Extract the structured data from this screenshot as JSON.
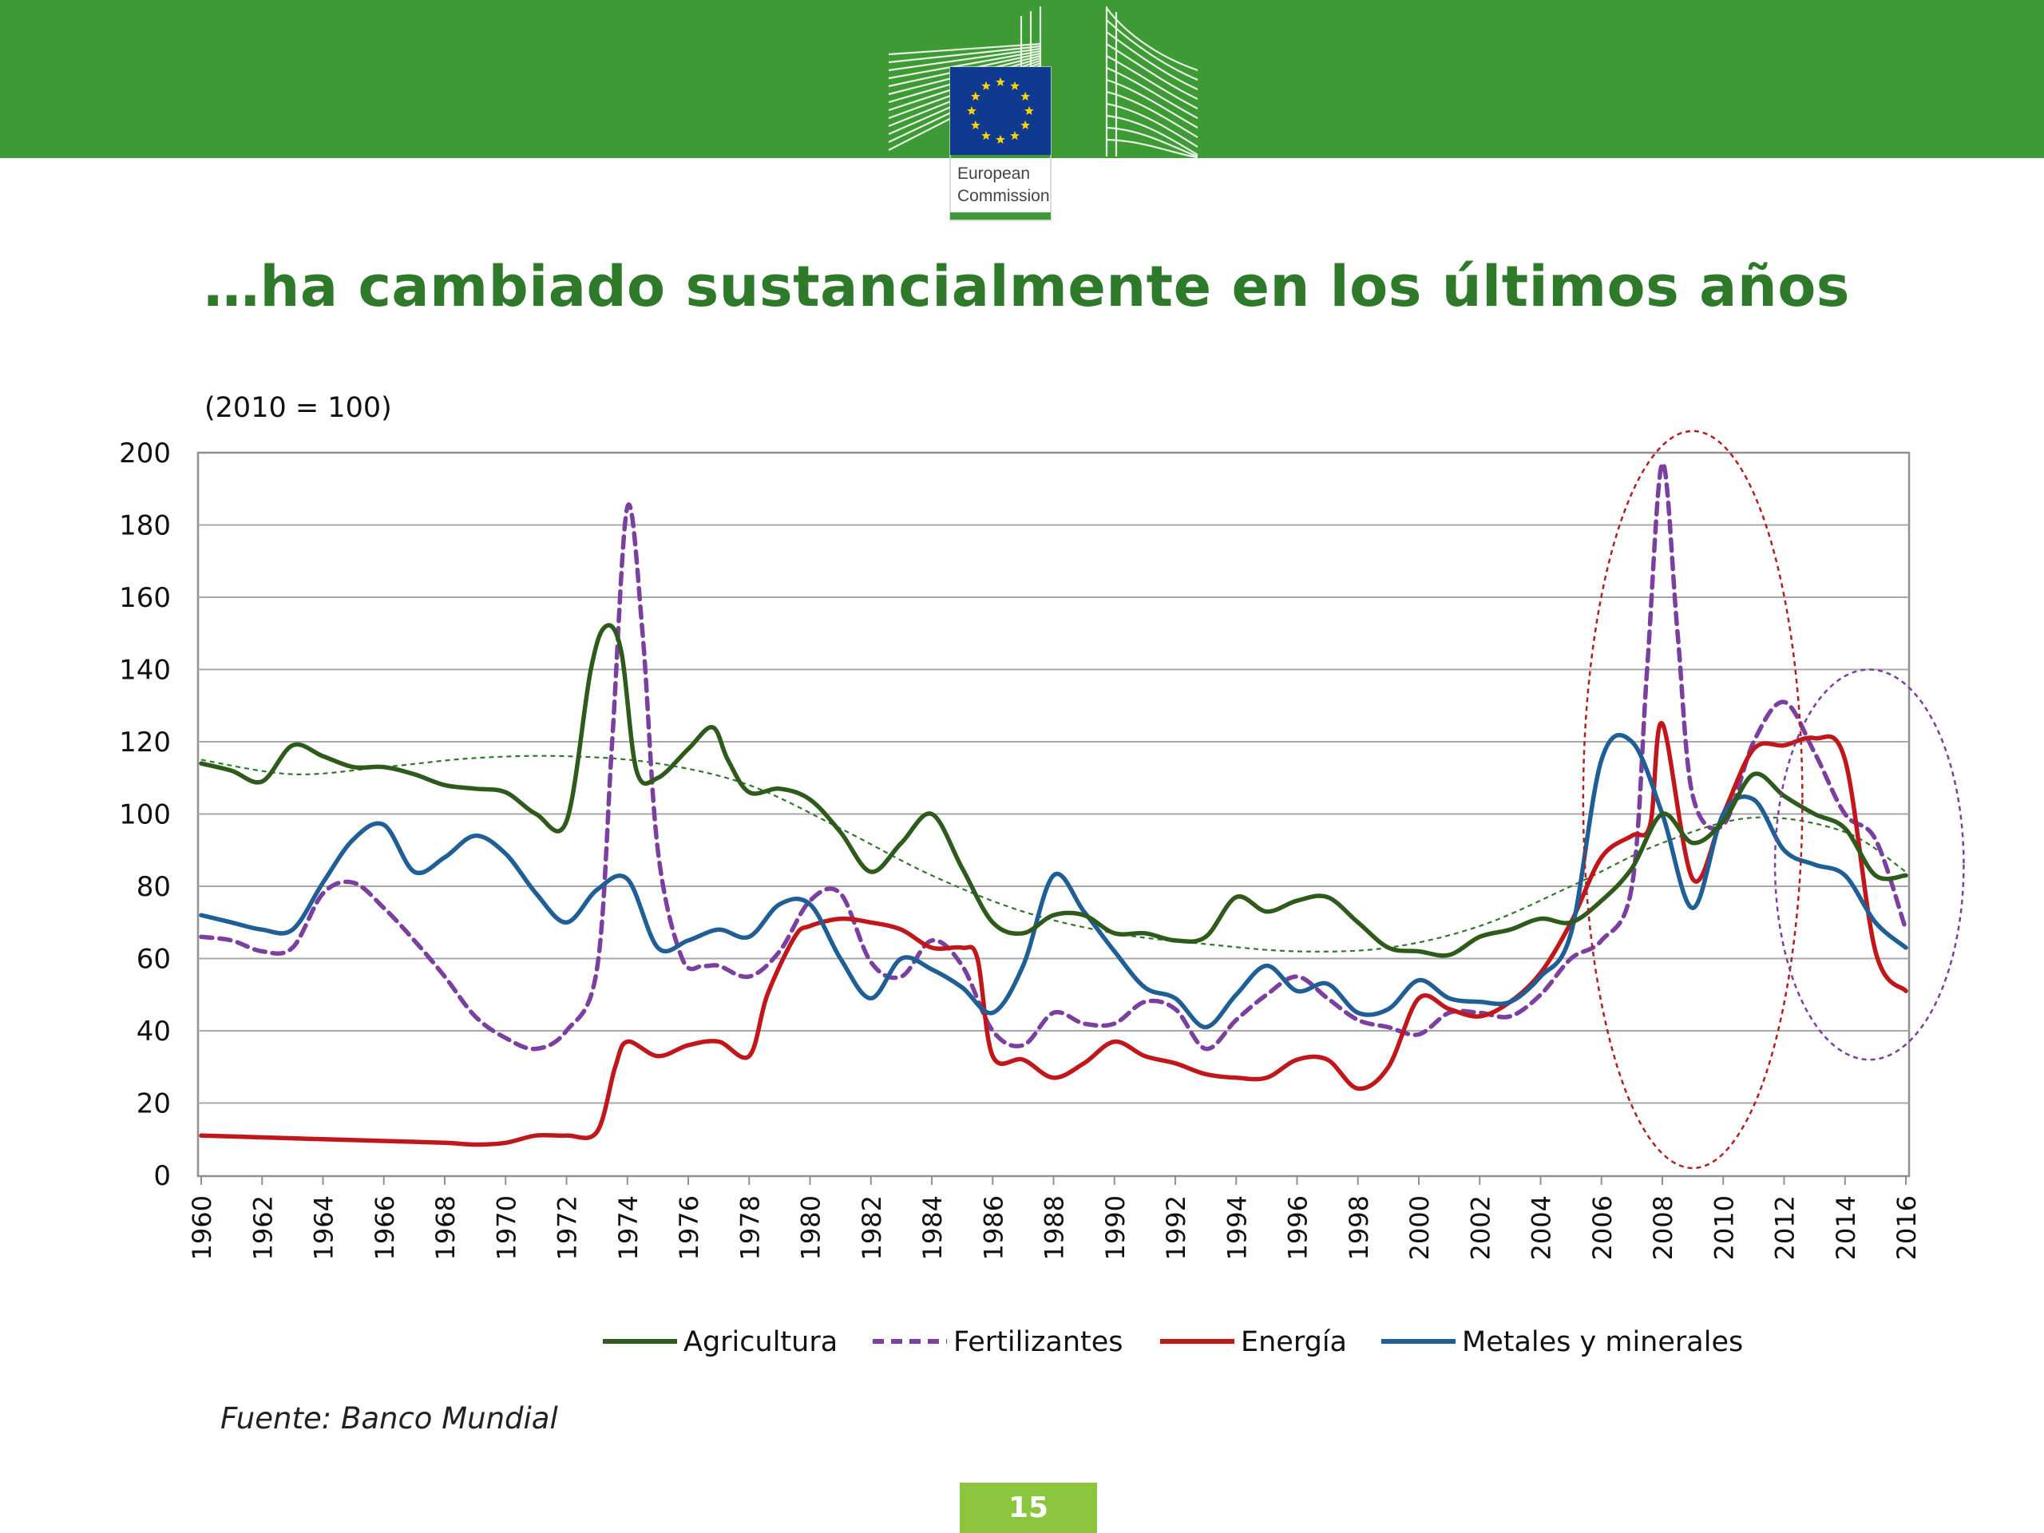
{
  "header": {
    "logo_line1": "European",
    "logo_line2": "Commission",
    "banner_color": "#3d9a35"
  },
  "slide": {
    "title": "…ha cambiado sustancialmente en los últimos años",
    "source": "Fuente: Banco Mundial",
    "page_number": "15"
  },
  "chart_data": {
    "type": "line",
    "title": "",
    "ylabel": "(2010 = 100)",
    "xlabel": "",
    "ylim": [
      0,
      200
    ],
    "xlim": [
      1960,
      2016
    ],
    "yticks": [
      "0",
      "20",
      "40",
      "60",
      "80",
      "100",
      "120",
      "140",
      "160",
      "180",
      "200"
    ],
    "xticks": [
      "1960",
      "1962",
      "1964",
      "1966",
      "1968",
      "1970",
      "1972",
      "1974",
      "1976",
      "1978",
      "1980",
      "1982",
      "1984",
      "1986",
      "1988",
      "1990",
      "1992",
      "1994",
      "1996",
      "1998",
      "2000",
      "2002",
      "2004",
      "2006",
      "2008",
      "2010",
      "2012",
      "2014",
      "2016"
    ],
    "grid": "horizontal",
    "legend_position": "bottom",
    "series": [
      {
        "name": "Agricultura",
        "color": "#2e5a1c",
        "dash": "solid",
        "x": [
          1960,
          1961,
          1962,
          1963,
          1964,
          1965,
          1966,
          1967,
          1968,
          1969,
          1970,
          1971,
          1972,
          1972.8,
          1973.3,
          1973.8,
          1974.3,
          1975,
          1976,
          1976.8,
          1977.3,
          1978,
          1979,
          1980,
          1981,
          1982,
          1983,
          1984,
          1985,
          1986,
          1987,
          1988,
          1989,
          1990,
          1991,
          1992,
          1993,
          1994,
          1995,
          1996,
          1997,
          1998,
          1999,
          2000,
          2001,
          2002,
          2003,
          2004,
          2005,
          2006,
          2007,
          2008,
          2009,
          2010,
          2011,
          2012,
          2013,
          2014,
          2015,
          2016
        ],
        "y": [
          114,
          112,
          109,
          119,
          116,
          113,
          113,
          111,
          108,
          107,
          106,
          100,
          98,
          140,
          152,
          145,
          112,
          110,
          118,
          124,
          115,
          106,
          107,
          104,
          95,
          84,
          92,
          100,
          85,
          70,
          67,
          72,
          72,
          67,
          67,
          65,
          66,
          77,
          73,
          76,
          77,
          70,
          63,
          62,
          61,
          66,
          68,
          71,
          70,
          76,
          85,
          100,
          92,
          98,
          111,
          105,
          100,
          96,
          83,
          83
        ]
      },
      {
        "name": "Fertilizantes",
        "color": "#7b3fa0",
        "dash": "14,9",
        "x": [
          1960,
          1961,
          1962,
          1963,
          1964,
          1965,
          1966,
          1967,
          1968,
          1969,
          1970,
          1971,
          1972,
          1973,
          1973.5,
          1974,
          1974.5,
          1975,
          1975.8,
          1976.5,
          1977,
          1978,
          1979,
          1980,
          1981,
          1982,
          1983,
          1984,
          1985,
          1986,
          1987,
          1988,
          1989,
          1990,
          1991,
          1992,
          1993,
          1994,
          1995,
          1996,
          1997,
          1998,
          1999,
          2000,
          2001,
          2002,
          2003,
          2004,
          2005,
          2006,
          2007,
          2007.5,
          2008,
          2008.5,
          2009,
          2010,
          2011,
          2012,
          2013,
          2014,
          2015,
          2016
        ],
        "y": [
          66,
          65,
          62,
          63,
          78,
          81,
          74,
          65,
          55,
          44,
          38,
          35,
          40,
          57,
          120,
          185,
          150,
          90,
          60,
          58,
          58,
          55,
          62,
          76,
          78,
          59,
          55,
          65,
          58,
          40,
          36,
          45,
          42,
          42,
          48,
          46,
          35,
          43,
          50,
          55,
          49,
          43,
          41,
          39,
          45,
          45,
          44,
          50,
          60,
          65,
          80,
          140,
          197,
          150,
          105,
          97,
          120,
          131,
          117,
          100,
          93,
          68
        ]
      },
      {
        "name": "Energía",
        "color": "#c0171b",
        "dash": "solid",
        "x": [
          1960,
          1962,
          1964,
          1966,
          1968,
          1969,
          1970,
          1971,
          1972,
          1973,
          1973.6,
          1974,
          1975,
          1976,
          1977,
          1978,
          1978.6,
          1979.5,
          1980,
          1981,
          1982,
          1983,
          1984,
          1985,
          1985.5,
          1986,
          1987,
          1988,
          1989,
          1990,
          1991,
          1992,
          1993,
          1994,
          1995,
          1996,
          1997,
          1998,
          1999,
          2000,
          2001,
          2002,
          2003,
          2004,
          2005,
          2006,
          2007,
          2007.6,
          2008,
          2009,
          2010,
          2011,
          2012,
          2013,
          2014,
          2015,
          2016
        ],
        "y": [
          11,
          10.5,
          10,
          9.5,
          9,
          8.5,
          9,
          11,
          11,
          12,
          30,
          37,
          33,
          36,
          37,
          33,
          50,
          66,
          69,
          71,
          70,
          68,
          63,
          63,
          60,
          33,
          32,
          27,
          31,
          37,
          33,
          31,
          28,
          27,
          27,
          32,
          32,
          24,
          30,
          49,
          46,
          44,
          48,
          56,
          70,
          88,
          94,
          97,
          125,
          82,
          100,
          118,
          119,
          121,
          115,
          62,
          51
        ]
      },
      {
        "name": "Metales y minerales",
        "color": "#1f5f96",
        "dash": "solid",
        "x": [
          1960,
          1961,
          1962,
          1963,
          1964,
          1965,
          1966,
          1967,
          1968,
          1969,
          1970,
          1971,
          1972,
          1973,
          1974,
          1975,
          1976,
          1977,
          1978,
          1979,
          1980,
          1981,
          1982,
          1983,
          1984,
          1985,
          1986,
          1987,
          1988,
          1989,
          1990,
          1991,
          1992,
          1993,
          1994,
          1995,
          1996,
          1997,
          1998,
          1999,
          2000,
          2001,
          2002,
          2003,
          2004,
          2005,
          2006,
          2007,
          2008,
          2009,
          2010,
          2011,
          2012,
          2013,
          2014,
          2015,
          2016
        ],
        "y": [
          72,
          70,
          68,
          68,
          81,
          93,
          97,
          84,
          88,
          94,
          89,
          78,
          70,
          79,
          82,
          63,
          65,
          68,
          66,
          75,
          75,
          60,
          49,
          60,
          57,
          52,
          45,
          58,
          83,
          73,
          62,
          52,
          49,
          41,
          50,
          58,
          51,
          53,
          45,
          46,
          54,
          49,
          48,
          48,
          55,
          67,
          115,
          120,
          100,
          74,
          100,
          104,
          90,
          86,
          83,
          70,
          63
        ]
      }
    ],
    "trend_lines": [
      {
        "name": "Agricultura",
        "color": "#2e7a2a",
        "x": [
          1960,
          1963,
          1966,
          1969,
          1972,
          1975,
          1978,
          1981,
          1984,
          1987,
          1990,
          1993,
          1996,
          1999,
          2002,
          2005,
          2008,
          2011,
          2014,
          2016
        ],
        "y": [
          115,
          111,
          113,
          115.5,
          116,
          114,
          108,
          96,
          83,
          73,
          67,
          64,
          62,
          63,
          69,
          80,
          92,
          99,
          95,
          84
        ]
      }
    ],
    "highlights": [
      {
        "shape": "ellipse",
        "color": "#b02020",
        "cx": 2009,
        "cy": 104,
        "rx": 3.6,
        "ry": 102
      },
      {
        "shape": "ellipse",
        "color": "#7b3fa0",
        "cx": 2014.8,
        "cy": 86,
        "rx": 3.1,
        "ry": 54
      }
    ]
  }
}
